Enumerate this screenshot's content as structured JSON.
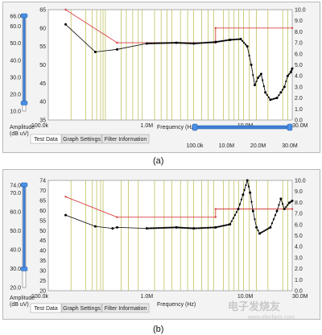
{
  "panel_labels": [
    "(a)",
    "(b)"
  ],
  "watermark": {
    "text": "电子发烧友",
    "url": "www.elecfans.com"
  },
  "chart_data": [
    {
      "type": "line",
      "panel": "(a)",
      "x_axis": {
        "label": "Frequency (Hz)",
        "scale": "log",
        "range": [
          100000,
          30000000
        ],
        "tick_labels": [
          "100.0k",
          "1.0M",
          "10.0M",
          "30.0M"
        ]
      },
      "y_left": {
        "range": [
          35,
          65
        ],
        "tick_labels": [
          "65",
          "60",
          "55",
          "50",
          "45",
          "40",
          "35"
        ]
      },
      "y_right": {
        "range": [
          0,
          10
        ],
        "tick_labels": [
          "10.0",
          "9.0",
          "8.0",
          "7.0",
          "6.0",
          "5.0",
          "4.0",
          "3.0",
          "2.0",
          "1.0",
          "0.0"
        ]
      },
      "amplitude_slider": {
        "label": "Amplitude (dB uV)",
        "ticks": [
          "66.0",
          "60.0",
          "50.0",
          "40.0",
          "30.0",
          "20.0",
          "10.0"
        ],
        "low": 15.0,
        "high": 66.0
      },
      "freq_slider": {
        "ticks": [
          "100.0k",
          "10.0M",
          "20.0M",
          "30.0M"
        ]
      },
      "tabs": [
        "Test Data",
        "Graph Settings",
        "Filter Information"
      ],
      "series": [
        {
          "color": "#d84040",
          "values": [
            [
              0.15,
              65
            ],
            [
              0.5,
              56
            ],
            [
              5,
              56
            ],
            [
              5,
              60
            ],
            [
              30,
              60
            ]
          ]
        },
        {
          "color": "#000000",
          "values": [
            [
              0.15,
              61
            ],
            [
              0.3,
              53.5
            ],
            [
              0.5,
              54.2
            ],
            [
              1.0,
              55.8
            ],
            [
              2.0,
              56.0
            ],
            [
              3.0,
              55.8
            ],
            [
              5.0,
              56.2
            ],
            [
              7.0,
              56.8
            ],
            [
              9.0,
              57.0
            ],
            [
              10.5,
              55.0
            ],
            [
              11.5,
              50.0
            ],
            [
              12.5,
              44.5
            ],
            [
              13.5,
              46.5
            ],
            [
              14.5,
              47.5
            ],
            [
              16.0,
              42.5
            ],
            [
              18.0,
              40.5
            ],
            [
              21.0,
              41.0
            ],
            [
              23.0,
              42.5
            ],
            [
              25.0,
              44.0
            ],
            [
              27.0,
              47.0
            ],
            [
              29.0,
              48.0
            ],
            [
              30.0,
              49.0
            ]
          ]
        }
      ],
      "markers": [
        0.17,
        0.24,
        0.28,
        0.31,
        0.34,
        0.36,
        0.38,
        0.55,
        0.62,
        0.72,
        0.82,
        0.9,
        1.2,
        1.4,
        1.6,
        1.8,
        2.2,
        2.6,
        3.0,
        3.6,
        4.2,
        4.8,
        6.0,
        6.8,
        7.7,
        8.6,
        9.6,
        11.0,
        13.0,
        17.0,
        24.0,
        27.0
      ]
    },
    {
      "type": "line",
      "panel": "(b)",
      "x_axis": {
        "label": "Frequency (Hz)",
        "scale": "log",
        "range": [
          100000,
          30000000
        ],
        "tick_labels": [
          "100.0k",
          "1.0M",
          "10.0M",
          "30.0M"
        ]
      },
      "y_left": {
        "range": [
          20,
          74
        ],
        "tick_labels": [
          "74",
          "70",
          "65",
          "60",
          "55",
          "50",
          "45",
          "40",
          "35",
          "30",
          "25",
          "20"
        ]
      },
      "y_right": {
        "range": [
          0,
          10
        ],
        "tick_labels": [
          "10.0",
          "9.0",
          "8.0",
          "7.0",
          "6.0",
          "5.0",
          "4.0",
          "3.0",
          "2.0",
          "1.0",
          "0.0"
        ]
      },
      "amplitude_slider": {
        "label": "Amplitude (dB uV)",
        "ticks": [
          "74.0",
          "70.0",
          "60.0",
          "50.0",
          "40.0",
          "30.0",
          "20.0"
        ],
        "low": 30.0,
        "high": 74.0
      },
      "tabs": [
        "Test Data",
        "Graph Settings",
        "Filter Information"
      ],
      "series": [
        {
          "color": "#d84040",
          "values": [
            [
              0.15,
              66
            ],
            [
              0.5,
              56
            ],
            [
              5,
              56
            ],
            [
              5,
              60
            ],
            [
              30,
              60
            ]
          ]
        },
        {
          "color": "#000000",
          "values": [
            [
              0.15,
              57
            ],
            [
              0.3,
              51.5
            ],
            [
              0.45,
              50.5
            ],
            [
              0.5,
              51
            ],
            [
              1.0,
              50.5
            ],
            [
              2.0,
              51.0
            ],
            [
              3.0,
              50.5
            ],
            [
              5.0,
              51.0
            ],
            [
              7.0,
              52.5
            ],
            [
              8.5,
              60.0
            ],
            [
              9.5,
              67.0
            ],
            [
              10.5,
              74.0
            ],
            [
              11.2,
              68.0
            ],
            [
              12.0,
              59.0
            ],
            [
              13.0,
              51.0
            ],
            [
              14.0,
              48.0
            ],
            [
              18.0,
              51.0
            ],
            [
              21.0,
              59.0
            ],
            [
              23.0,
              65.0
            ],
            [
              25.0,
              60.0
            ],
            [
              28.0,
              63.0
            ],
            [
              30.0,
              64.0
            ]
          ]
        }
      ],
      "markers": [
        0.17,
        0.24,
        0.28,
        0.31,
        0.34,
        0.36,
        0.55,
        0.65,
        0.82,
        1.2,
        1.5,
        1.8,
        2.2,
        2.6,
        3.0,
        3.6,
        4.2,
        4.8,
        6.0,
        6.8,
        7.7,
        8.6,
        9.6,
        11.0,
        13.0,
        17.0,
        24.0,
        27.0
      ]
    }
  ]
}
